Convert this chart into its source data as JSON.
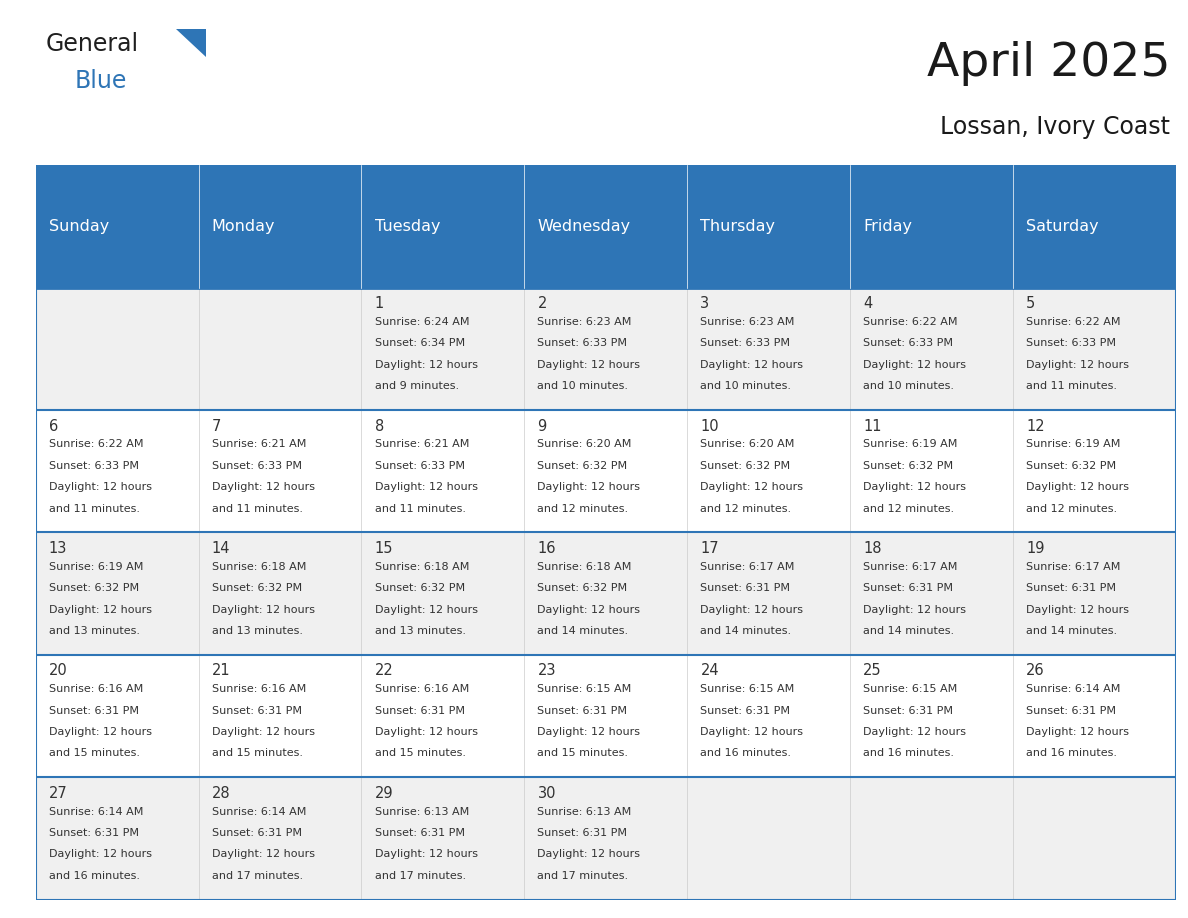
{
  "title": "April 2025",
  "subtitle": "Lossan, Ivory Coast",
  "header_bg": "#2E75B6",
  "header_text_color": "#FFFFFF",
  "cell_bg_even": "#FFFFFF",
  "cell_bg_odd": "#F0F0F0",
  "day_headers": [
    "Sunday",
    "Monday",
    "Tuesday",
    "Wednesday",
    "Thursday",
    "Friday",
    "Saturday"
  ],
  "grid_line_color": "#2E75B6",
  "title_color": "#1a1a1a",
  "subtitle_color": "#1a1a1a",
  "days": [
    {
      "day": "",
      "col": 0,
      "row": 0,
      "sunrise": "",
      "sunset": "",
      "daylight_suffix": ""
    },
    {
      "day": "",
      "col": 1,
      "row": 0,
      "sunrise": "",
      "sunset": "",
      "daylight_suffix": ""
    },
    {
      "day": "1",
      "col": 2,
      "row": 0,
      "sunrise": "6:24 AM",
      "sunset": "6:34 PM",
      "daylight_suffix": "9 minutes."
    },
    {
      "day": "2",
      "col": 3,
      "row": 0,
      "sunrise": "6:23 AM",
      "sunset": "6:33 PM",
      "daylight_suffix": "10 minutes."
    },
    {
      "day": "3",
      "col": 4,
      "row": 0,
      "sunrise": "6:23 AM",
      "sunset": "6:33 PM",
      "daylight_suffix": "10 minutes."
    },
    {
      "day": "4",
      "col": 5,
      "row": 0,
      "sunrise": "6:22 AM",
      "sunset": "6:33 PM",
      "daylight_suffix": "10 minutes."
    },
    {
      "day": "5",
      "col": 6,
      "row": 0,
      "sunrise": "6:22 AM",
      "sunset": "6:33 PM",
      "daylight_suffix": "11 minutes."
    },
    {
      "day": "6",
      "col": 0,
      "row": 1,
      "sunrise": "6:22 AM",
      "sunset": "6:33 PM",
      "daylight_suffix": "11 minutes."
    },
    {
      "day": "7",
      "col": 1,
      "row": 1,
      "sunrise": "6:21 AM",
      "sunset": "6:33 PM",
      "daylight_suffix": "11 minutes."
    },
    {
      "day": "8",
      "col": 2,
      "row": 1,
      "sunrise": "6:21 AM",
      "sunset": "6:33 PM",
      "daylight_suffix": "11 minutes."
    },
    {
      "day": "9",
      "col": 3,
      "row": 1,
      "sunrise": "6:20 AM",
      "sunset": "6:32 PM",
      "daylight_suffix": "12 minutes."
    },
    {
      "day": "10",
      "col": 4,
      "row": 1,
      "sunrise": "6:20 AM",
      "sunset": "6:32 PM",
      "daylight_suffix": "12 minutes."
    },
    {
      "day": "11",
      "col": 5,
      "row": 1,
      "sunrise": "6:19 AM",
      "sunset": "6:32 PM",
      "daylight_suffix": "12 minutes."
    },
    {
      "day": "12",
      "col": 6,
      "row": 1,
      "sunrise": "6:19 AM",
      "sunset": "6:32 PM",
      "daylight_suffix": "12 minutes."
    },
    {
      "day": "13",
      "col": 0,
      "row": 2,
      "sunrise": "6:19 AM",
      "sunset": "6:32 PM",
      "daylight_suffix": "13 minutes."
    },
    {
      "day": "14",
      "col": 1,
      "row": 2,
      "sunrise": "6:18 AM",
      "sunset": "6:32 PM",
      "daylight_suffix": "13 minutes."
    },
    {
      "day": "15",
      "col": 2,
      "row": 2,
      "sunrise": "6:18 AM",
      "sunset": "6:32 PM",
      "daylight_suffix": "13 minutes."
    },
    {
      "day": "16",
      "col": 3,
      "row": 2,
      "sunrise": "6:18 AM",
      "sunset": "6:32 PM",
      "daylight_suffix": "14 minutes."
    },
    {
      "day": "17",
      "col": 4,
      "row": 2,
      "sunrise": "6:17 AM",
      "sunset": "6:31 PM",
      "daylight_suffix": "14 minutes."
    },
    {
      "day": "18",
      "col": 5,
      "row": 2,
      "sunrise": "6:17 AM",
      "sunset": "6:31 PM",
      "daylight_suffix": "14 minutes."
    },
    {
      "day": "19",
      "col": 6,
      "row": 2,
      "sunrise": "6:17 AM",
      "sunset": "6:31 PM",
      "daylight_suffix": "14 minutes."
    },
    {
      "day": "20",
      "col": 0,
      "row": 3,
      "sunrise": "6:16 AM",
      "sunset": "6:31 PM",
      "daylight_suffix": "15 minutes."
    },
    {
      "day": "21",
      "col": 1,
      "row": 3,
      "sunrise": "6:16 AM",
      "sunset": "6:31 PM",
      "daylight_suffix": "15 minutes."
    },
    {
      "day": "22",
      "col": 2,
      "row": 3,
      "sunrise": "6:16 AM",
      "sunset": "6:31 PM",
      "daylight_suffix": "15 minutes."
    },
    {
      "day": "23",
      "col": 3,
      "row": 3,
      "sunrise": "6:15 AM",
      "sunset": "6:31 PM",
      "daylight_suffix": "15 minutes."
    },
    {
      "day": "24",
      "col": 4,
      "row": 3,
      "sunrise": "6:15 AM",
      "sunset": "6:31 PM",
      "daylight_suffix": "16 minutes."
    },
    {
      "day": "25",
      "col": 5,
      "row": 3,
      "sunrise": "6:15 AM",
      "sunset": "6:31 PM",
      "daylight_suffix": "16 minutes."
    },
    {
      "day": "26",
      "col": 6,
      "row": 3,
      "sunrise": "6:14 AM",
      "sunset": "6:31 PM",
      "daylight_suffix": "16 minutes."
    },
    {
      "day": "27",
      "col": 0,
      "row": 4,
      "sunrise": "6:14 AM",
      "sunset": "6:31 PM",
      "daylight_suffix": "16 minutes."
    },
    {
      "day": "28",
      "col": 1,
      "row": 4,
      "sunrise": "6:14 AM",
      "sunset": "6:31 PM",
      "daylight_suffix": "17 minutes."
    },
    {
      "day": "29",
      "col": 2,
      "row": 4,
      "sunrise": "6:13 AM",
      "sunset": "6:31 PM",
      "daylight_suffix": "17 minutes."
    },
    {
      "day": "30",
      "col": 3,
      "row": 4,
      "sunrise": "6:13 AM",
      "sunset": "6:31 PM",
      "daylight_suffix": "17 minutes."
    },
    {
      "day": "",
      "col": 4,
      "row": 4,
      "sunrise": "",
      "sunset": "",
      "daylight_suffix": ""
    },
    {
      "day": "",
      "col": 5,
      "row": 4,
      "sunrise": "",
      "sunset": "",
      "daylight_suffix": ""
    },
    {
      "day": "",
      "col": 6,
      "row": 4,
      "sunrise": "",
      "sunset": "",
      "daylight_suffix": ""
    }
  ],
  "num_rows": 5,
  "num_cols": 7,
  "text_color": "#333333",
  "cell_text_size": 8.0,
  "day_num_size": 10.5,
  "header_font_size": 11.5
}
